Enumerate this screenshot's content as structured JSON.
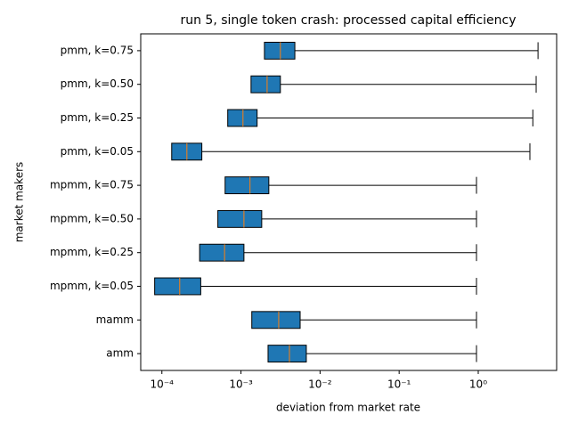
{
  "chart_data": {
    "type": "boxplot",
    "orientation": "horizontal",
    "title": "run 5, single token crash: processed capital efficiency",
    "x_label": "deviation from market rate",
    "y_label": "market makers",
    "categories": [
      "amm",
      "mamm",
      "mpmm, k=0.05",
      "mpmm, k=0.25",
      "mpmm, k=0.50",
      "mpmm, k=0.75",
      "pmm, k=0.05",
      "pmm, k=0.25",
      "pmm, k=0.50",
      "pmm, k=0.75"
    ],
    "q1": [
      0.0022,
      0.00137,
      8.1e-05,
      0.0003,
      0.00051,
      0.00063,
      0.000133,
      0.00068,
      0.00134,
      0.00198
    ],
    "median": [
      0.0041,
      0.003,
      0.000168,
      0.00062,
      0.00109,
      0.0013,
      0.000207,
      0.00106,
      0.00214,
      0.00315
    ],
    "q3": [
      0.0067,
      0.0056,
      0.00031,
      0.00109,
      0.00183,
      0.00225,
      0.00032,
      0.0016,
      0.00315,
      0.0048
    ],
    "whisker_high": [
      0.95,
      0.95,
      0.95,
      0.95,
      0.95,
      0.95,
      4.5,
      4.9,
      5.4,
      5.7
    ],
    "box_color": "#1f77b4",
    "median_color": "#ff7f0e",
    "x_scale": "log",
    "xlim": [
      5.4e-05,
      9.8
    ],
    "xticks": [
      {
        "value": 0.0001,
        "label": "10⁻⁴"
      },
      {
        "value": 0.001,
        "label": "10⁻³"
      },
      {
        "value": 0.01,
        "label": "10⁻²"
      },
      {
        "value": 0.1,
        "label": "10⁻¹"
      },
      {
        "value": 1,
        "label": "10⁰"
      }
    ]
  }
}
